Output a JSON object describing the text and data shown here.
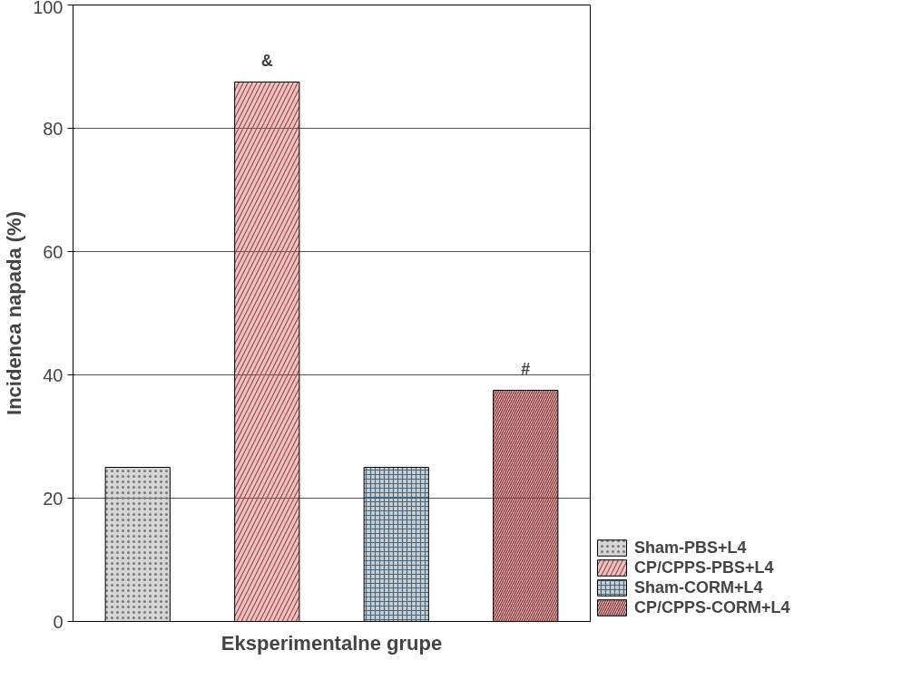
{
  "chart_data": {
    "type": "bar",
    "xlabel": "Eksperimentalne grupe",
    "ylabel": "Incidenca napada (%)",
    "categories": [
      null,
      null,
      null,
      null
    ],
    "series": [
      {
        "name": "Sham-PBS+L4",
        "color": "#777777",
        "values": [
          25,
          null,
          null,
          null
        ]
      },
      {
        "name": "CP/CPPS-PBS+L4",
        "color": "#b04040",
        "values": [
          null,
          87.5,
          null,
          null
        ]
      },
      {
        "name": "Sham-CORM+L4",
        "color": "#4a6478",
        "values": [
          null,
          null,
          25,
          null
        ]
      },
      {
        "name": "CP/CPPS-CORM+L4",
        "color": "#8b2a2a",
        "values": [
          null,
          null,
          null,
          37.5
        ]
      }
    ],
    "ylim": [
      0,
      100
    ],
    "yticks": [
      0,
      20,
      40,
      60,
      80,
      100
    ],
    "grid": "y",
    "legend": "bottom right",
    "annotations": [
      {
        "text": "&",
        "y": 87.5
      },
      {
        "text": "#",
        "y": 37.5
      }
    ]
  }
}
